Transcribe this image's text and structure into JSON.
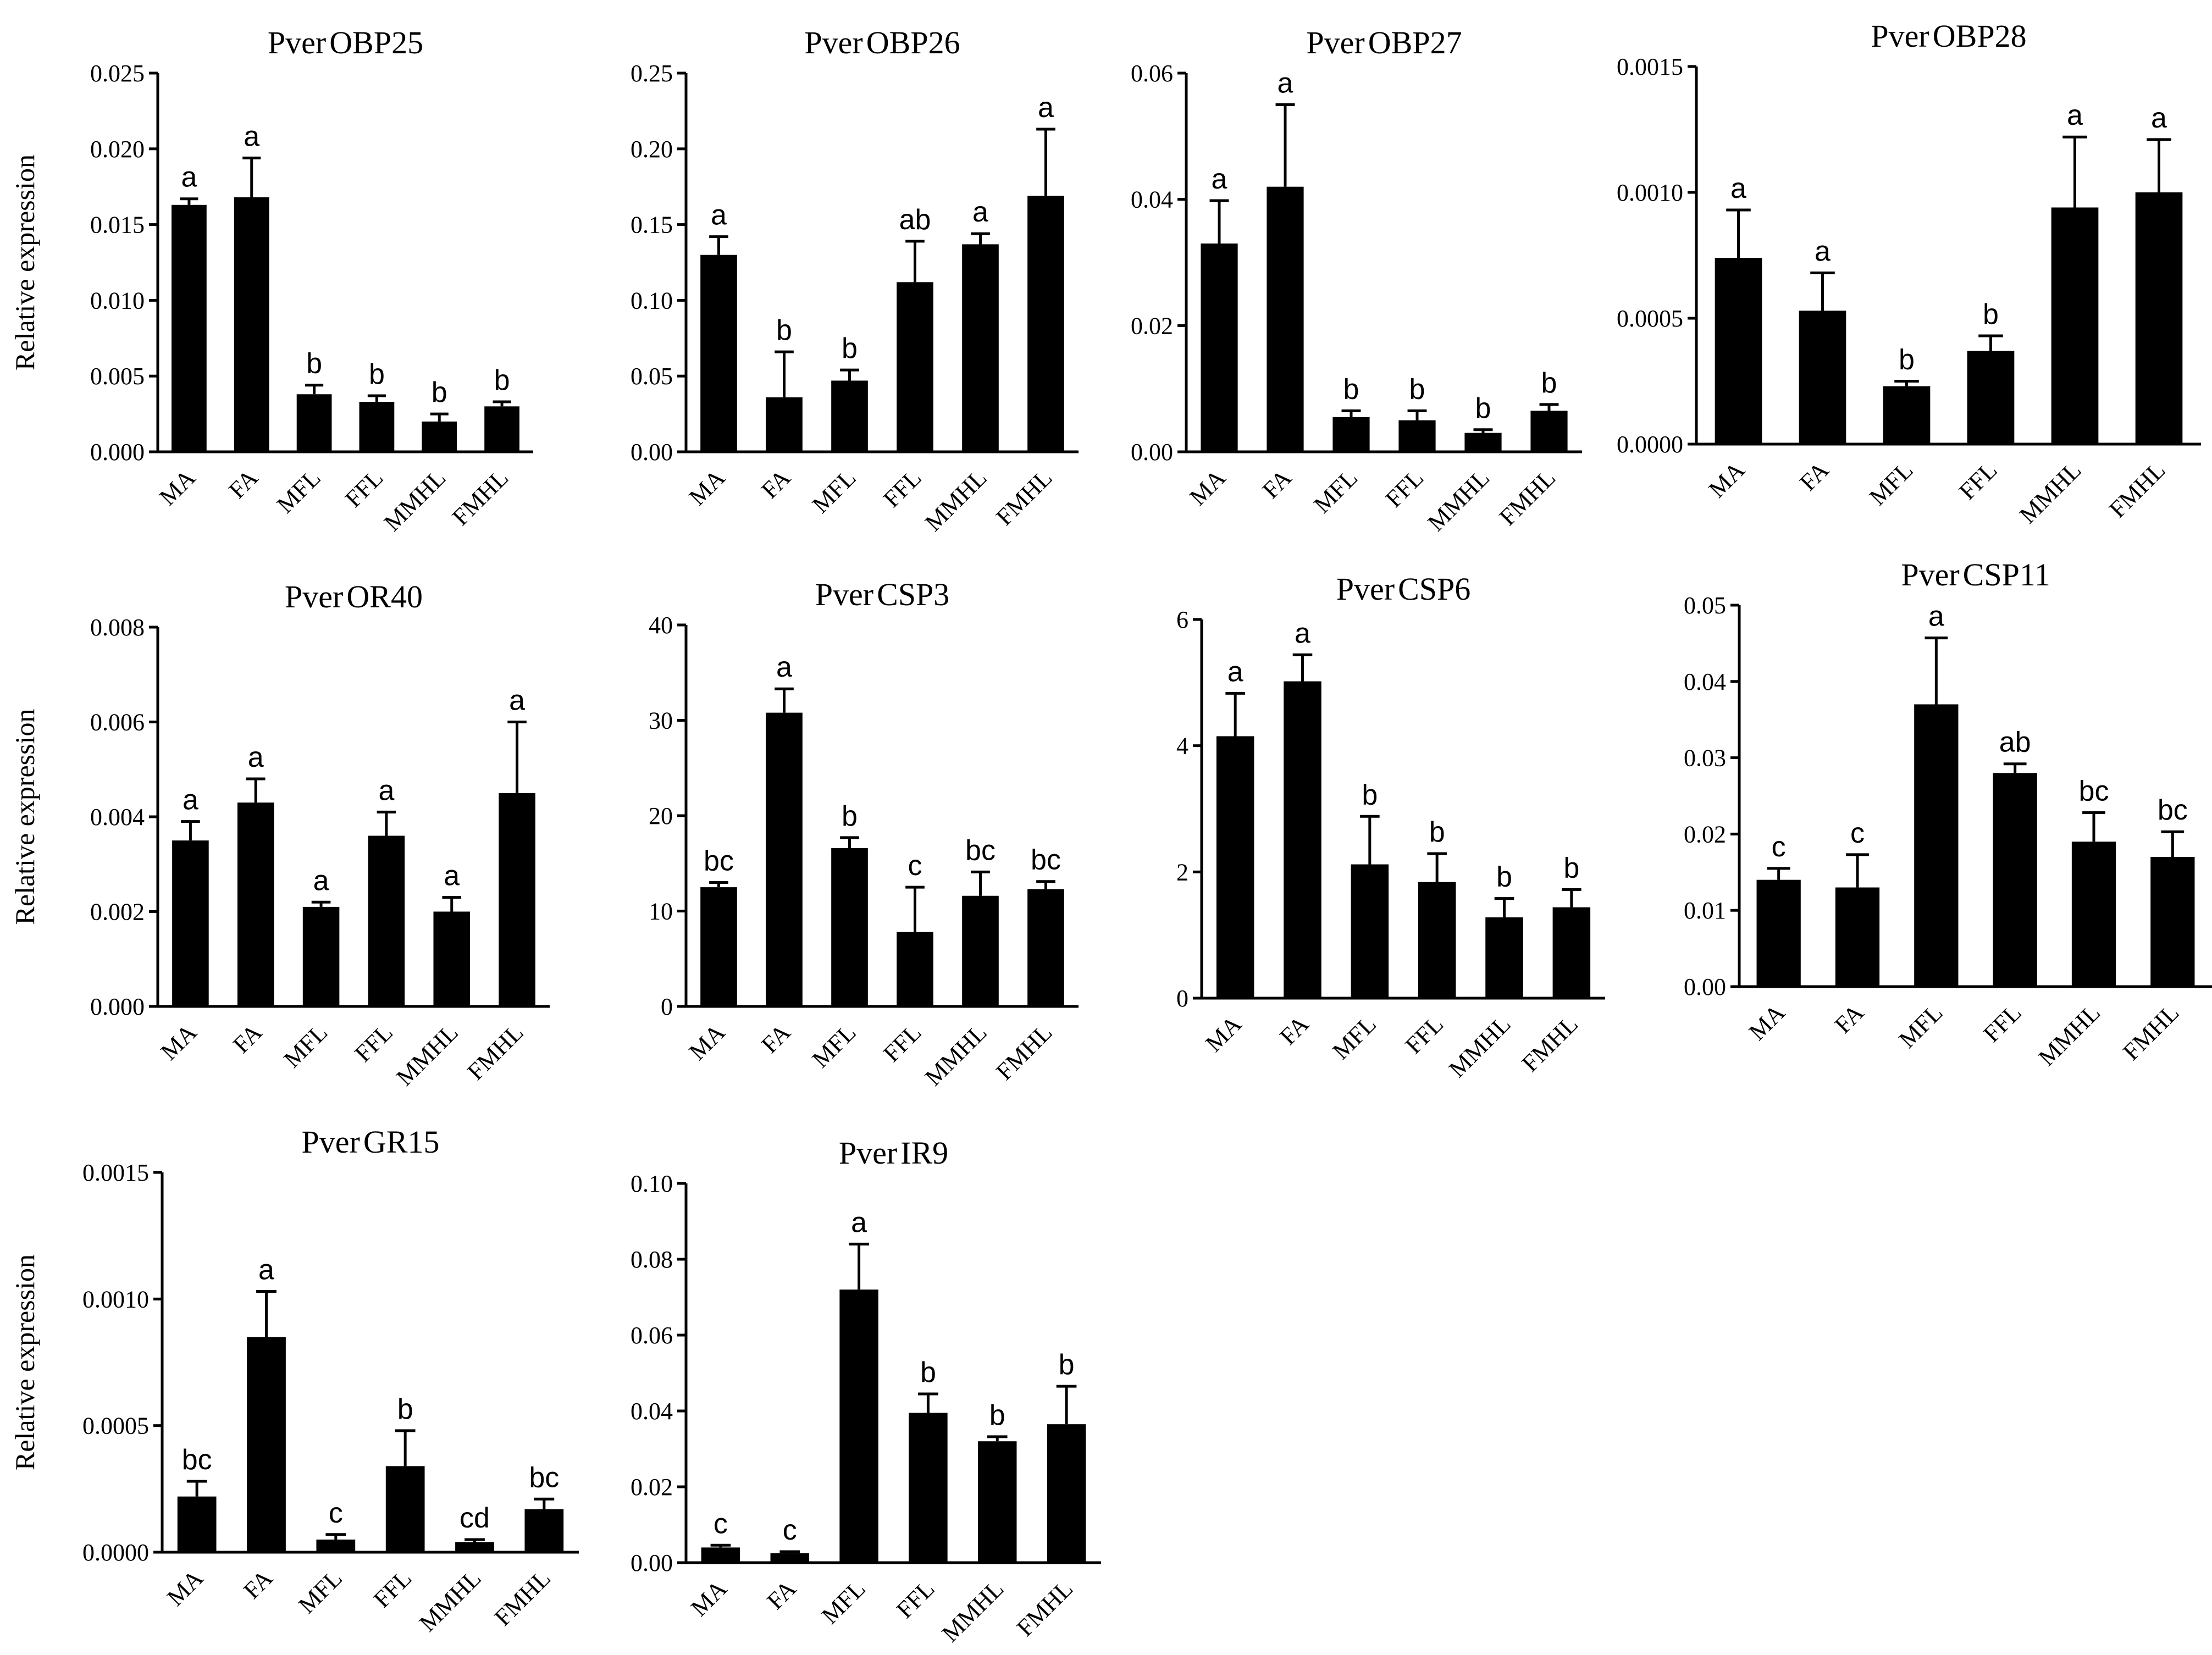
{
  "figure": {
    "y_axis_label": "Relative expression",
    "categories": [
      "MA",
      "FA",
      "MFL",
      "FFL",
      "MMHL",
      "FMHL"
    ]
  },
  "chart_data": [
    {
      "type": "bar",
      "title_prefix": "Pver",
      "title_gene": "OBP25",
      "ylabel": "Relative expression",
      "categories": [
        "MA",
        "FA",
        "MFL",
        "FFL",
        "MMHL",
        "FMHL"
      ],
      "values": [
        0.0163,
        0.0168,
        0.0038,
        0.0033,
        0.002,
        0.003
      ],
      "errors": [
        0.0004,
        0.0026,
        0.0006,
        0.0004,
        0.0005,
        0.0003
      ],
      "letters": [
        "a",
        "a",
        "b",
        "b",
        "b",
        "b"
      ],
      "ylim": [
        0,
        0.025
      ],
      "ticks": [
        0.0,
        0.005,
        0.01,
        0.015,
        0.02,
        0.025
      ],
      "tick_labels": [
        "0.000",
        "0.005",
        "0.010",
        "0.015",
        "0.020",
        "0.025"
      ]
    },
    {
      "type": "bar",
      "title_prefix": "Pver",
      "title_gene": "OBP26",
      "ylabel": "",
      "categories": [
        "MA",
        "FA",
        "MFL",
        "FFL",
        "MMHL",
        "FMHL"
      ],
      "values": [
        0.13,
        0.036,
        0.047,
        0.112,
        0.137,
        0.169
      ],
      "errors": [
        0.012,
        0.03,
        0.007,
        0.027,
        0.007,
        0.044
      ],
      "letters": [
        "a",
        "b",
        "b",
        "ab",
        "a",
        "a"
      ],
      "ylim": [
        0,
        0.25
      ],
      "ticks": [
        0.0,
        0.05,
        0.1,
        0.15,
        0.2,
        0.25
      ],
      "tick_labels": [
        "0.00",
        "0.05",
        "0.10",
        "0.15",
        "0.20",
        "0.25"
      ]
    },
    {
      "type": "bar",
      "title_prefix": "Pver",
      "title_gene": "OBP27",
      "ylabel": "",
      "categories": [
        "MA",
        "FA",
        "MFL",
        "FFL",
        "MMHL",
        "FMHL"
      ],
      "values": [
        0.033,
        0.042,
        0.0055,
        0.005,
        0.003,
        0.0065
      ],
      "errors": [
        0.0068,
        0.013,
        0.001,
        0.0015,
        0.0005,
        0.001
      ],
      "letters": [
        "a",
        "a",
        "b",
        "b",
        "b",
        "b"
      ],
      "ylim": [
        0,
        0.06
      ],
      "ticks": [
        0.0,
        0.02,
        0.04,
        0.06
      ],
      "tick_labels": [
        "0.00",
        "0.02",
        "0.04",
        "0.06"
      ]
    },
    {
      "type": "bar",
      "title_prefix": "Pver",
      "title_gene": "OBP28",
      "ylabel": "",
      "categories": [
        "MA",
        "FA",
        "MFL",
        "FFL",
        "MMHL",
        "FMHL"
      ],
      "values": [
        0.00074,
        0.00053,
        0.00023,
        0.00037,
        0.00094,
        0.001
      ],
      "errors": [
        0.00019,
        0.00015,
        2e-05,
        6e-05,
        0.00028,
        0.00021
      ],
      "letters": [
        "a",
        "a",
        "b",
        "b",
        "a",
        "a"
      ],
      "ylim": [
        0,
        0.0015
      ],
      "ticks": [
        0.0,
        0.0005,
        0.001,
        0.0015
      ],
      "tick_labels": [
        "0.0000",
        "0.0005",
        "0.0010",
        "0.0015"
      ]
    },
    {
      "type": "bar",
      "title_prefix": "Pver",
      "title_gene": "OR40",
      "ylabel": "Relative expression",
      "categories": [
        "MA",
        "FA",
        "MFL",
        "FFL",
        "MMHL",
        "FMHL"
      ],
      "values": [
        0.0035,
        0.0043,
        0.0021,
        0.0036,
        0.002,
        0.0045
      ],
      "errors": [
        0.0004,
        0.0005,
        0.0001,
        0.0005,
        0.0003,
        0.0015
      ],
      "letters": [
        "a",
        "a",
        "a",
        "a",
        "a",
        "a"
      ],
      "ylim": [
        0,
        0.008
      ],
      "ticks": [
        0.0,
        0.002,
        0.004,
        0.006,
        0.008
      ],
      "tick_labels": [
        "0.000",
        "0.002",
        "0.004",
        "0.006",
        "0.008"
      ]
    },
    {
      "type": "bar",
      "title_prefix": "Pver",
      "title_gene": "CSP3",
      "ylabel": "",
      "categories": [
        "MA",
        "FA",
        "MFL",
        "FFL",
        "MMHL",
        "FMHL"
      ],
      "values": [
        12.5,
        30.8,
        16.6,
        7.8,
        11.6,
        12.3
      ],
      "errors": [
        0.5,
        2.5,
        1.1,
        4.7,
        2.5,
        0.8
      ],
      "letters": [
        "bc",
        "a",
        "b",
        "c",
        "bc",
        "bc"
      ],
      "ylim": [
        0,
        40
      ],
      "ticks": [
        0,
        10,
        20,
        30,
        40
      ],
      "tick_labels": [
        "0",
        "10",
        "20",
        "30",
        "40"
      ]
    },
    {
      "type": "bar",
      "title_prefix": "Pver",
      "title_gene": "CSP6",
      "ylabel": "",
      "categories": [
        "MA",
        "FA",
        "MFL",
        "FFL",
        "MMHL",
        "FMHL"
      ],
      "values": [
        4.15,
        5.02,
        2.12,
        1.84,
        1.28,
        1.44
      ],
      "errors": [
        0.68,
        0.42,
        0.76,
        0.45,
        0.3,
        0.28
      ],
      "letters": [
        "a",
        "a",
        "b",
        "b",
        "b",
        "b"
      ],
      "ylim": [
        0,
        6
      ],
      "ticks": [
        0,
        2,
        4,
        6
      ],
      "tick_labels": [
        "0",
        "2",
        "4",
        "6"
      ]
    },
    {
      "type": "bar",
      "title_prefix": "Pver",
      "title_gene": "CSP11",
      "ylabel": "",
      "categories": [
        "MA",
        "FA",
        "MFL",
        "FFL",
        "MMHL",
        "FMHL"
      ],
      "values": [
        0.014,
        0.013,
        0.037,
        0.028,
        0.019,
        0.017
      ],
      "errors": [
        0.0015,
        0.0043,
        0.0087,
        0.0012,
        0.0038,
        0.0033
      ],
      "letters": [
        "c",
        "c",
        "a",
        "ab",
        "bc",
        "bc"
      ],
      "ylim": [
        0,
        0.05
      ],
      "ticks": [
        0.0,
        0.01,
        0.02,
        0.03,
        0.04,
        0.05
      ],
      "tick_labels": [
        "0.00",
        "0.01",
        "0.02",
        "0.03",
        "0.04",
        "0.05"
      ]
    },
    {
      "type": "bar",
      "title_prefix": "Pver",
      "title_gene": "GR15",
      "ylabel": "Relative expression",
      "categories": [
        "MA",
        "FA",
        "MFL",
        "FFL",
        "MMHL",
        "FMHL"
      ],
      "values": [
        0.00022,
        0.00085,
        5e-05,
        0.00034,
        4e-05,
        0.00017
      ],
      "errors": [
        6e-05,
        0.00018,
        2e-05,
        0.00014,
        1e-05,
        4e-05
      ],
      "letters": [
        "bc",
        "a",
        "c",
        "b",
        "cd",
        "bc"
      ],
      "ylim": [
        0,
        0.0015
      ],
      "ticks": [
        0.0,
        0.0005,
        0.001,
        0.0015
      ],
      "tick_labels": [
        "0.0000",
        "0.0005",
        "0.0010",
        "0.0015"
      ]
    },
    {
      "type": "bar",
      "title_prefix": "Pver",
      "title_gene": "IR9",
      "ylabel": "",
      "categories": [
        "MA",
        "FA",
        "MFL",
        "FFL",
        "MMHL",
        "FMHL"
      ],
      "values": [
        0.004,
        0.0025,
        0.072,
        0.0395,
        0.032,
        0.0365
      ],
      "errors": [
        0.0006,
        0.0004,
        0.012,
        0.005,
        0.0012,
        0.01
      ],
      "letters": [
        "c",
        "c",
        "a",
        "b",
        "b",
        "b"
      ],
      "ylim": [
        0,
        0.1
      ],
      "ticks": [
        0.0,
        0.02,
        0.04,
        0.06,
        0.08,
        0.1
      ],
      "tick_labels": [
        "0.00",
        "0.02",
        "0.04",
        "0.06",
        "0.08",
        "0.10"
      ]
    }
  ]
}
